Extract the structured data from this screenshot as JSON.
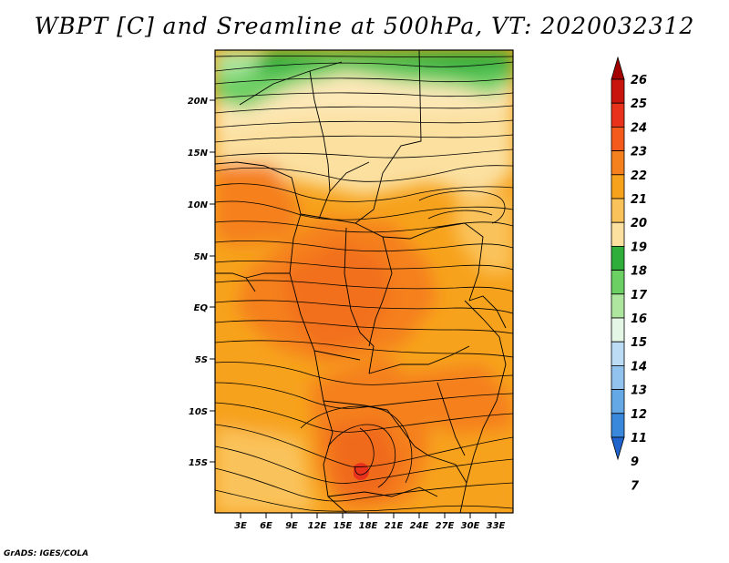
{
  "title": "WBPT [C] and Sreamline at 500hPa, VT: 2020032312",
  "credit": "GrADS: IGES/COLA",
  "map": {
    "variable": "Wet-bulb potential temperature",
    "units": "C",
    "level": "500hPa",
    "lon_range": [
      0,
      35
    ],
    "lat_range": [
      -20,
      25
    ],
    "lat_ticks": [
      "20N",
      "15N",
      "10N",
      "5N",
      "EQ",
      "5S",
      "10S",
      "15S"
    ],
    "lon_ticks": [
      "3E",
      "6E",
      "9E",
      "12E",
      "15E",
      "18E",
      "21E",
      "24E",
      "27E",
      "30E",
      "33E"
    ]
  },
  "colorbar": {
    "levels": [
      "26",
      "25",
      "24",
      "23",
      "22",
      "21",
      "20",
      "19",
      "18",
      "17",
      "16",
      "15",
      "14",
      "13",
      "12",
      "11",
      "9",
      "7"
    ],
    "colors": [
      "#a50000",
      "#c8160f",
      "#e8321c",
      "#f55a1d",
      "#f5801e",
      "#f7a21c",
      "#fac25a",
      "#fbe0a0",
      "#2fae3c",
      "#6ccf63",
      "#aee6a0",
      "#e4f7e6",
      "#bcdcf5",
      "#91c3ee",
      "#64a8e6",
      "#3a88dc",
      "#1e64cc"
    ]
  }
}
